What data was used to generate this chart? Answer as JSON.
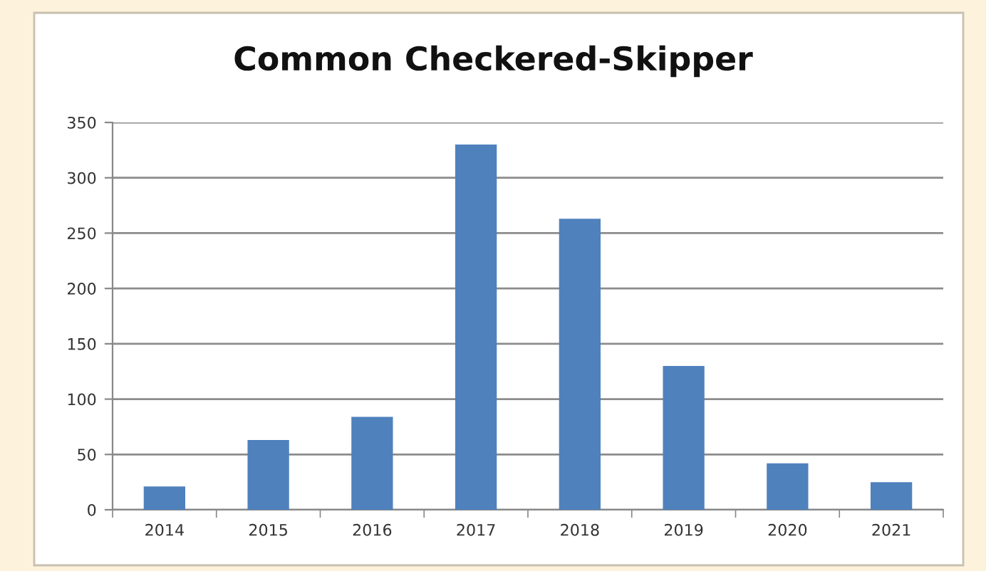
{
  "chart_data": {
    "type": "bar",
    "title": "Common Checkered-Skipper",
    "categories": [
      "2014",
      "2015",
      "2016",
      "2017",
      "2018",
      "2019",
      "2020",
      "2021"
    ],
    "values": [
      21,
      63,
      84,
      330,
      263,
      130,
      42,
      25
    ],
    "color": "#4f81bd",
    "ylim": [
      0,
      350
    ],
    "yticks": [
      0,
      50,
      100,
      150,
      200,
      250,
      300,
      350
    ],
    "grid": "y"
  }
}
